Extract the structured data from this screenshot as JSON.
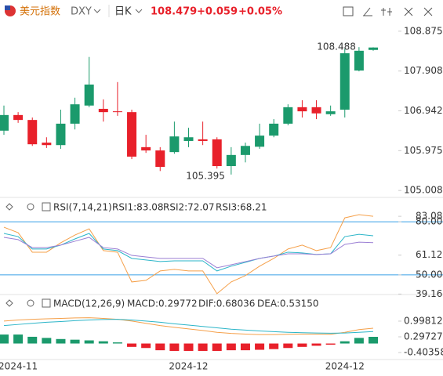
{
  "header": {
    "name": "美元指数",
    "symbol": "DXY",
    "period": "日K",
    "change": "+0.059",
    "change_pct": "+0.05%"
  },
  "chart_data": [
    {
      "type": "candlestick",
      "categories": [
        null,
        "2024-11",
        null,
        null,
        null,
        null,
        null,
        null,
        null,
        null,
        null,
        null,
        null,
        "2024-12",
        null,
        null,
        null,
        null,
        null,
        null,
        null,
        null,
        null,
        null,
        "2024-12",
        null,
        null
      ],
      "open": [
        106.46,
        106.84,
        106.72,
        106.17,
        106.11,
        106.63,
        107.07,
        106.99,
        106.93,
        106.91,
        106.06,
        105.98,
        105.94,
        106.21,
        106.25,
        106.25,
        105.6,
        105.87,
        106.07,
        106.34,
        106.63,
        107.03,
        107.03,
        106.86,
        106.97,
        107.92,
        108.42
      ],
      "high": [
        107.07,
        106.91,
        106.78,
        106.3,
        106.97,
        107.26,
        108.25,
        107.22,
        107.64,
        106.97,
        106.36,
        106.06,
        106.68,
        106.53,
        106.68,
        106.3,
        106.06,
        106.17,
        106.63,
        106.74,
        107.1,
        107.2,
        107.2,
        107.07,
        108.45,
        108.488,
        108.485
      ],
      "low": [
        106.36,
        106.65,
        106.09,
        106.04,
        106.02,
        106.49,
        107.03,
        106.68,
        106.82,
        105.77,
        105.92,
        105.48,
        105.9,
        106.06,
        106.11,
        105.54,
        105.395,
        105.69,
        106.02,
        106.3,
        106.59,
        106.78,
        106.74,
        106.82,
        106.78,
        107.9,
        108.4
      ],
      "close": [
        106.84,
        106.72,
        106.13,
        106.11,
        106.63,
        107.1,
        107.58,
        106.91,
        106.91,
        105.83,
        105.98,
        105.58,
        106.32,
        106.3,
        106.21,
        105.6,
        105.87,
        106.09,
        106.34,
        106.63,
        107.03,
        106.93,
        106.88,
        106.93,
        108.34,
        108.4,
        108.479
      ],
      "ylim": [
        104.84,
        109.1
      ],
      "yticks": [
        108.875,
        107.908,
        106.942,
        105.975,
        105.008
      ],
      "up_color": "#1b9a6c",
      "down_color": "#e8202a"
    },
    {
      "type": "line",
      "title": "RSI(7,14,21)",
      "series": [
        {
          "name": "RSI1:83.08",
          "color": "#f5a04a",
          "values": [
            76.9,
            73.8,
            62.8,
            62.8,
            68.1,
            72.5,
            76.0,
            63.7,
            62.8,
            46.0,
            46.9,
            52.2,
            53.1,
            52.2,
            52.2,
            39.4,
            46.0,
            49.6,
            54.9,
            59.3,
            64.6,
            66.8,
            63.7,
            65.4,
            82.2,
            84.0,
            83.08
          ]
        },
        {
          "name": "RSI2:72.07",
          "color": "#2bb5c8",
          "values": [
            73.4,
            71.6,
            64.6,
            64.6,
            66.8,
            70.3,
            73.4,
            64.6,
            63.7,
            59.3,
            58.4,
            57.5,
            57.9,
            57.9,
            57.9,
            52.2,
            54.9,
            57.1,
            59.3,
            60.6,
            62.8,
            62.4,
            61.5,
            61.9,
            71.6,
            72.9,
            72.07
          ]
        },
        {
          "name": "RSI3:68.21",
          "color": "#9b7fd4",
          "values": [
            71.2,
            69.9,
            65.4,
            65.4,
            66.8,
            69.0,
            71.2,
            65.4,
            64.6,
            61.0,
            60.1,
            59.3,
            59.3,
            59.3,
            59.3,
            54.0,
            55.7,
            57.5,
            59.3,
            60.6,
            61.9,
            61.9,
            61.5,
            61.9,
            67.2,
            68.5,
            68.21
          ]
        }
      ],
      "ref_lines": [
        80,
        50
      ],
      "ref_color": "#3aa0e8",
      "ylim": [
        38,
        88
      ],
      "yticks": [
        {
          "value": 80,
          "label": "80.00"
        },
        83.08,
        61.12,
        {
          "value": 50,
          "label": "50.00"
        },
        39.16
      ]
    },
    {
      "type": "macd",
      "title": "MACD(12,26,9)",
      "series": [
        {
          "name": "MACD:0.29772",
          "color": "#9b7fd4",
          "up_color": "#1b9a6c",
          "down_color": "#e8202a",
          "values": [
            0.4,
            0.4,
            0.3,
            0.25,
            0.2,
            0.17,
            0.14,
            0.1,
            0.05,
            -0.15,
            -0.2,
            -0.3,
            -0.33,
            -0.33,
            -0.33,
            -0.33,
            -0.3,
            -0.3,
            -0.28,
            -0.25,
            -0.2,
            -0.15,
            -0.1,
            -0.05,
            0.1,
            0.25,
            0.29772
          ]
        },
        {
          "name": "DIF:0.68036",
          "color": "#f5a04a",
          "values": [
            1.0,
            1.05,
            1.08,
            1.1,
            1.12,
            1.14,
            1.15,
            1.12,
            1.08,
            1.0,
            0.9,
            0.8,
            0.72,
            0.65,
            0.58,
            0.5,
            0.45,
            0.42,
            0.4,
            0.4,
            0.41,
            0.42,
            0.42,
            0.41,
            0.5,
            0.62,
            0.68036
          ]
        },
        {
          "name": "DEA:0.53150",
          "color": "#2bb5c8",
          "values": [
            0.8,
            0.85,
            0.9,
            0.95,
            0.98,
            1.02,
            1.05,
            1.07,
            1.08,
            1.05,
            1.0,
            0.95,
            0.88,
            0.82,
            0.76,
            0.7,
            0.64,
            0.6,
            0.56,
            0.53,
            0.5,
            0.48,
            0.47,
            0.46,
            0.47,
            0.5,
            0.5315
          ]
        }
      ],
      "ylim": [
        -0.68,
        1.52
      ],
      "yticks": [
        0.99812,
        0.29727,
        -0.40358
      ]
    }
  ]
}
